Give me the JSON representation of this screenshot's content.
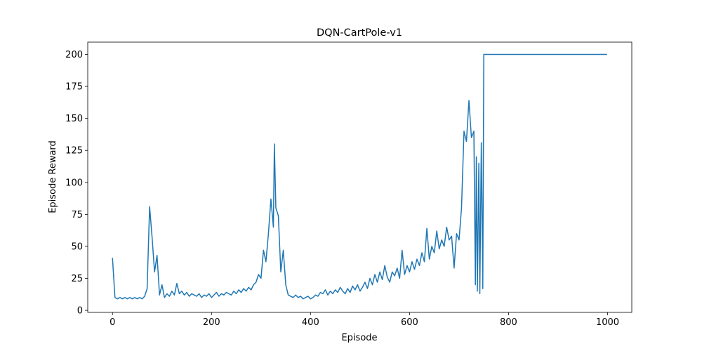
{
  "chart_data": {
    "type": "line",
    "title": "DQN-CartPole-v1",
    "xlabel": "Episode",
    "ylabel": "Episode Reward",
    "x": [
      0,
      5,
      10,
      15,
      20,
      25,
      30,
      35,
      40,
      45,
      50,
      55,
      60,
      65,
      70,
      75,
      80,
      85,
      90,
      95,
      100,
      105,
      110,
      115,
      120,
      125,
      130,
      135,
      140,
      145,
      150,
      155,
      160,
      165,
      170,
      175,
      180,
      185,
      190,
      195,
      200,
      205,
      210,
      215,
      220,
      225,
      230,
      235,
      240,
      245,
      250,
      255,
      260,
      265,
      270,
      275,
      280,
      285,
      290,
      295,
      300,
      305,
      310,
      315,
      320,
      325,
      327,
      330,
      335,
      340,
      345,
      350,
      355,
      360,
      365,
      370,
      375,
      380,
      385,
      390,
      395,
      400,
      405,
      410,
      415,
      420,
      425,
      430,
      435,
      440,
      445,
      450,
      455,
      460,
      465,
      470,
      475,
      480,
      485,
      490,
      495,
      500,
      505,
      510,
      515,
      520,
      525,
      530,
      535,
      540,
      545,
      550,
      555,
      560,
      565,
      570,
      575,
      580,
      585,
      590,
      595,
      600,
      605,
      610,
      615,
      620,
      625,
      630,
      635,
      640,
      645,
      650,
      655,
      660,
      665,
      670,
      675,
      680,
      685,
      690,
      695,
      700,
      705,
      710,
      715,
      720,
      725,
      730,
      733,
      735,
      737,
      740,
      742,
      745,
      748,
      750,
      800,
      850,
      900,
      950,
      999
    ],
    "series": [
      {
        "name": "Episode Reward",
        "color": "#1f77b4",
        "values": [
          41,
          10,
          9,
          10,
          9,
          10,
          9,
          10,
          9,
          10,
          9,
          10,
          9,
          11,
          17,
          81,
          57,
          30,
          43,
          12,
          20,
          10,
          13,
          11,
          15,
          12,
          21,
          13,
          15,
          12,
          14,
          11,
          13,
          12,
          11,
          13,
          10,
          12,
          11,
          13,
          10,
          12,
          14,
          11,
          13,
          12,
          14,
          13,
          12,
          15,
          13,
          16,
          14,
          17,
          15,
          18,
          16,
          20,
          22,
          28,
          25,
          47,
          38,
          60,
          87,
          65,
          130,
          80,
          74,
          30,
          47,
          20,
          12,
          11,
          10,
          12,
          10,
          11,
          9,
          10,
          11,
          9,
          10,
          12,
          11,
          14,
          13,
          16,
          12,
          15,
          13,
          16,
          14,
          18,
          15,
          13,
          17,
          14,
          19,
          16,
          20,
          15,
          18,
          22,
          17,
          25,
          20,
          28,
          22,
          30,
          24,
          35,
          26,
          22,
          30,
          27,
          33,
          25,
          47,
          28,
          35,
          30,
          38,
          32,
          40,
          35,
          45,
          38,
          64,
          40,
          50,
          45,
          62,
          48,
          55,
          50,
          65,
          55,
          58,
          33,
          60,
          55,
          80,
          140,
          132,
          164,
          135,
          140,
          20,
          120,
          15,
          115,
          13,
          131,
          17,
          200,
          200,
          200,
          200,
          200,
          200
        ]
      }
    ],
    "xlim": [
      -49.95,
      1048.95
    ],
    "ylim": [
      -1.6,
      209.6
    ],
    "xticks": [
      0,
      200,
      400,
      600,
      800,
      1000
    ],
    "yticks": [
      0,
      25,
      50,
      75,
      100,
      125,
      150,
      175,
      200
    ]
  }
}
